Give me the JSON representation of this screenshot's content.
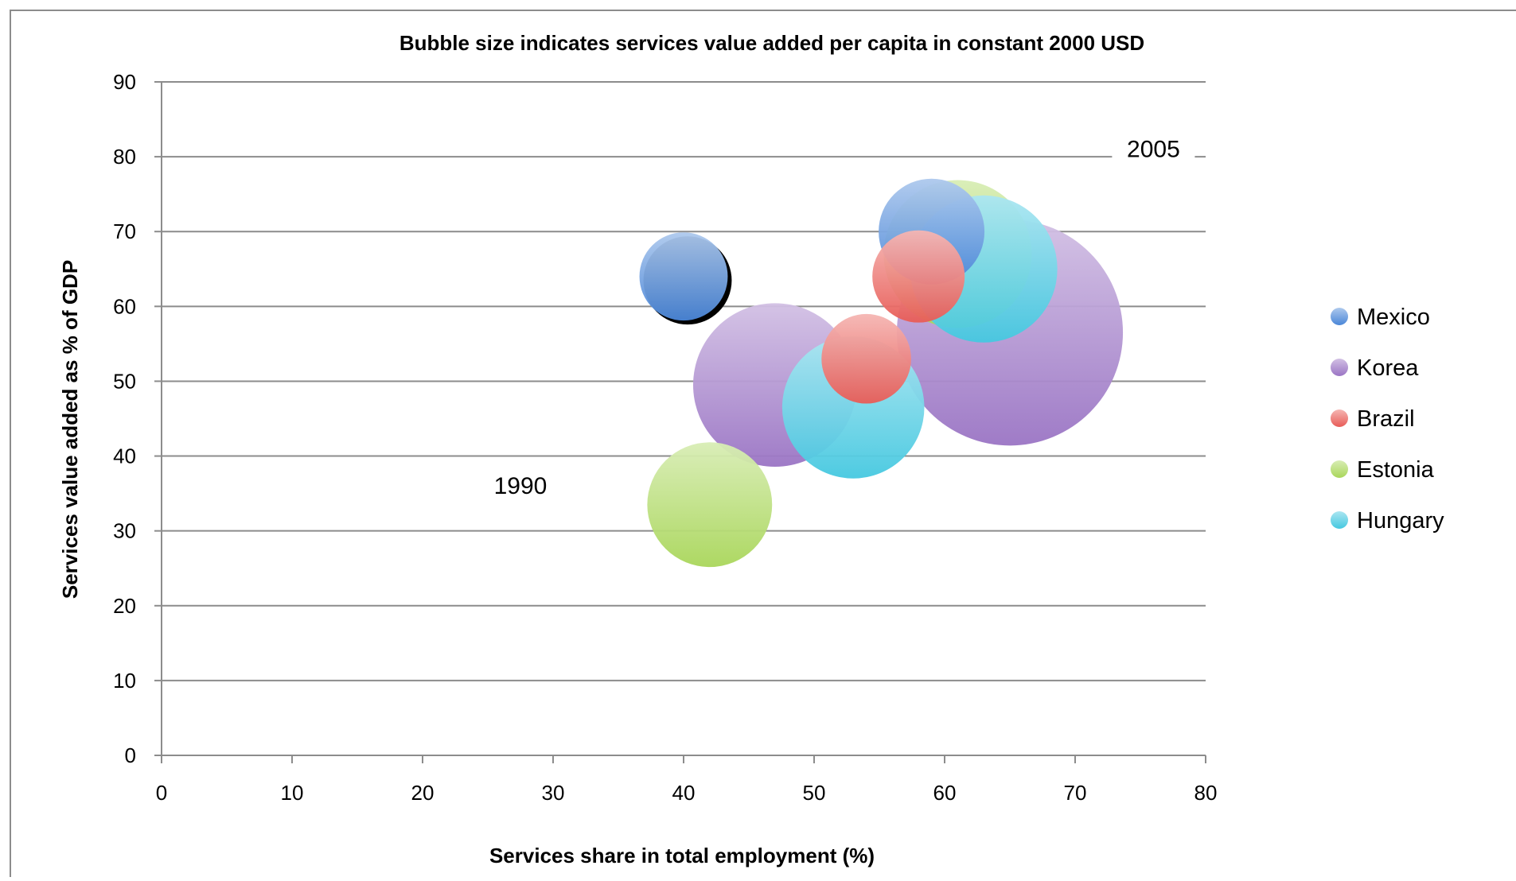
{
  "chart_data": {
    "type": "scatter",
    "title": "Bubble size indicates services value added per capita in constant 2000 USD",
    "xlabel": "Services share in total employment (%)",
    "ylabel": "Services value added as % of GDP",
    "xlim": [
      0,
      80
    ],
    "ylim": [
      0,
      90
    ],
    "x_ticks": [
      "0",
      "10",
      "20",
      "30",
      "40",
      "50",
      "60",
      "70",
      "80"
    ],
    "y_ticks": [
      "0",
      "10",
      "20",
      "30",
      "40",
      "50",
      "60",
      "70",
      "80",
      "90"
    ],
    "grid": "horizontal",
    "legend_position": "right",
    "annotations": [
      {
        "text": "1990",
        "x": 27.5,
        "y": 36
      },
      {
        "text": "2005",
        "x": 76,
        "y": 81
      }
    ],
    "series": [
      {
        "name": "Mexico",
        "color": "#4a86d8",
        "points": [
          {
            "x": 40,
            "y": 64,
            "size": 3.2
          },
          {
            "x": 59,
            "y": 70,
            "size": 4.6
          }
        ]
      },
      {
        "name": "Korea",
        "color": "#9a74c4",
        "points": [
          {
            "x": 47,
            "y": 49.5,
            "size": 11
          },
          {
            "x": 65,
            "y": 56.5,
            "size": 21
          }
        ]
      },
      {
        "name": "Brazil",
        "color": "#e85c57",
        "points": [
          {
            "x": 54,
            "y": 53,
            "size": 3.3
          },
          {
            "x": 58,
            "y": 64,
            "size": 3.5
          }
        ]
      },
      {
        "name": "Estonia",
        "color": "#a9d65a",
        "points": [
          {
            "x": 42,
            "y": 33.5,
            "size": 6.4
          },
          {
            "x": 61,
            "y": 67,
            "size": 9
          }
        ]
      },
      {
        "name": "Hungary",
        "color": "#45c8e0",
        "points": [
          {
            "x": 53,
            "y": 46.5,
            "size": 8.3
          },
          {
            "x": 63,
            "y": 65,
            "size": 8.9
          }
        ]
      }
    ]
  }
}
